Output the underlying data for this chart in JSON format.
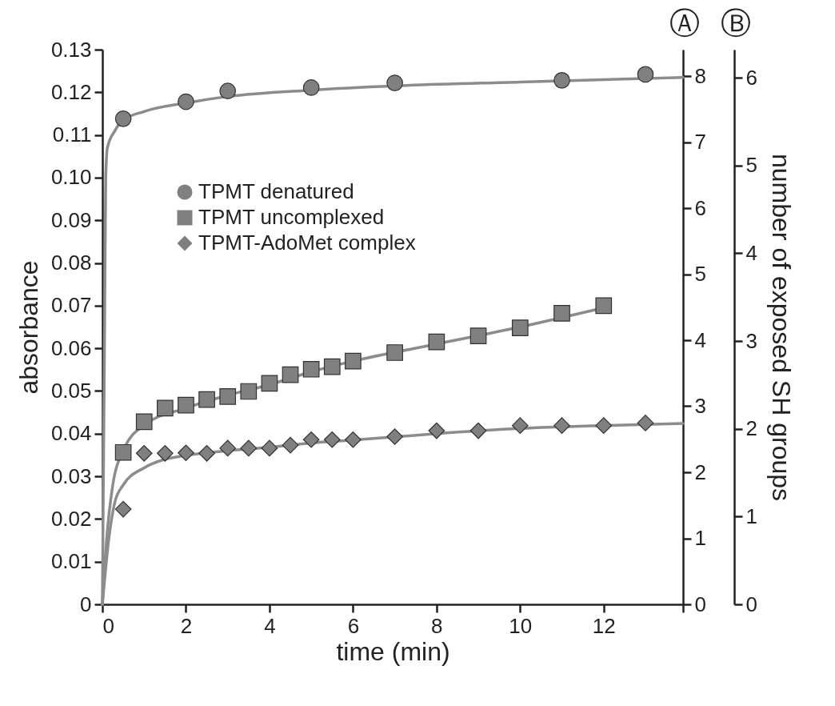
{
  "chart_data": {
    "type": "scatter",
    "xlabel": "time (min)",
    "ylabel": "absorbance",
    "y3label": "number of exposed SH groups",
    "annotations": [
      "Ⓐ",
      "Ⓑ"
    ],
    "xlim": [
      0,
      13.9
    ],
    "xticks": [
      0,
      2,
      4,
      6,
      8,
      10,
      12,
      {
        "value": 13.9,
        "label": null
      }
    ],
    "ylim": [
      0,
      0.13
    ],
    "yticks": [
      0,
      0.01,
      0.02,
      0.03,
      0.04,
      0.05,
      0.06,
      0.07,
      0.08,
      0.09,
      {
        "value": 0.1,
        "label": "0.10"
      },
      0.11,
      0.12,
      0.13
    ],
    "y2lim": [
      0,
      8.4
    ],
    "y2ticks": [
      0,
      1,
      2,
      3,
      4,
      5,
      6,
      7,
      8
    ],
    "y3lim": [
      0,
      6.32
    ],
    "y3ticks": [
      0,
      1,
      2,
      3,
      4,
      5,
      6
    ],
    "legend": "top left",
    "grid": false,
    "series": [
      {
        "name": "TPMT denatured",
        "marker": "circle",
        "color": "#808080",
        "x": [
          0.5,
          2,
          3,
          5,
          7,
          11,
          13
        ],
        "values": [
          0.1138,
          0.1178,
          0.1203,
          0.1211,
          0.1222,
          0.1228,
          0.1242
        ]
      },
      {
        "name": "TPMT uncomplexed",
        "marker": "square",
        "color": "#808080",
        "x": [
          0.5,
          1,
          1.5,
          2,
          2.5,
          3,
          3.5,
          4,
          4.5,
          5,
          5.5,
          6,
          7,
          8,
          9,
          10,
          11,
          12
        ],
        "values": [
          0.0356,
          0.0428,
          0.046,
          0.0467,
          0.048,
          0.0487,
          0.0499,
          0.0518,
          0.0538,
          0.0551,
          0.0557,
          0.057,
          0.059,
          0.0615,
          0.0629,
          0.0648,
          0.0682,
          0.07
        ]
      },
      {
        "name": "TPMT-AdoMet complex",
        "marker": "diamond",
        "color": "#808080",
        "x": [
          0.5,
          1,
          1.5,
          2,
          2.5,
          3,
          3.5,
          4,
          4.5,
          5,
          5.5,
          6,
          7,
          8,
          9,
          10,
          11,
          12,
          13
        ],
        "values": [
          0.0223,
          0.0354,
          0.0354,
          0.0355,
          0.0354,
          0.0366,
          0.0366,
          0.0366,
          0.0373,
          0.0386,
          0.0386,
          0.0386,
          0.0393,
          0.0407,
          0.0407,
          0.0419,
          0.0419,
          0.0419,
          0.0425
        ]
      },
      {
        "type": "line",
        "color": "#8c8c8c",
        "x": [
          0,
          0.05,
          0.08,
          0.12,
          0.3,
          0.5,
          1,
          2,
          3,
          5,
          7,
          10,
          13.9
        ],
        "values": [
          0,
          0.06,
          0.1,
          0.107,
          0.111,
          0.1135,
          0.1155,
          0.1175,
          0.119,
          0.1205,
          0.1215,
          0.1224,
          0.1235
        ]
      },
      {
        "type": "line",
        "color": "#8c8c8c",
        "x": [
          0,
          0.1,
          0.25,
          0.5,
          1,
          2,
          3,
          4,
          5,
          6,
          8,
          10,
          12
        ],
        "values": [
          0,
          0.015,
          0.028,
          0.036,
          0.042,
          0.046,
          0.049,
          0.0515,
          0.0545,
          0.057,
          0.061,
          0.065,
          0.0695
        ]
      },
      {
        "type": "line",
        "color": "#8c8c8c",
        "x": [
          0,
          0.15,
          0.3,
          0.5,
          1,
          1.5,
          2,
          3,
          4,
          5,
          6,
          8,
          10,
          12,
          13.9
        ],
        "values": [
          0,
          0.015,
          0.024,
          0.028,
          0.032,
          0.034,
          0.0349,
          0.036,
          0.0368,
          0.0378,
          0.0385,
          0.04,
          0.0412,
          0.0419,
          0.0424
        ]
      }
    ]
  }
}
